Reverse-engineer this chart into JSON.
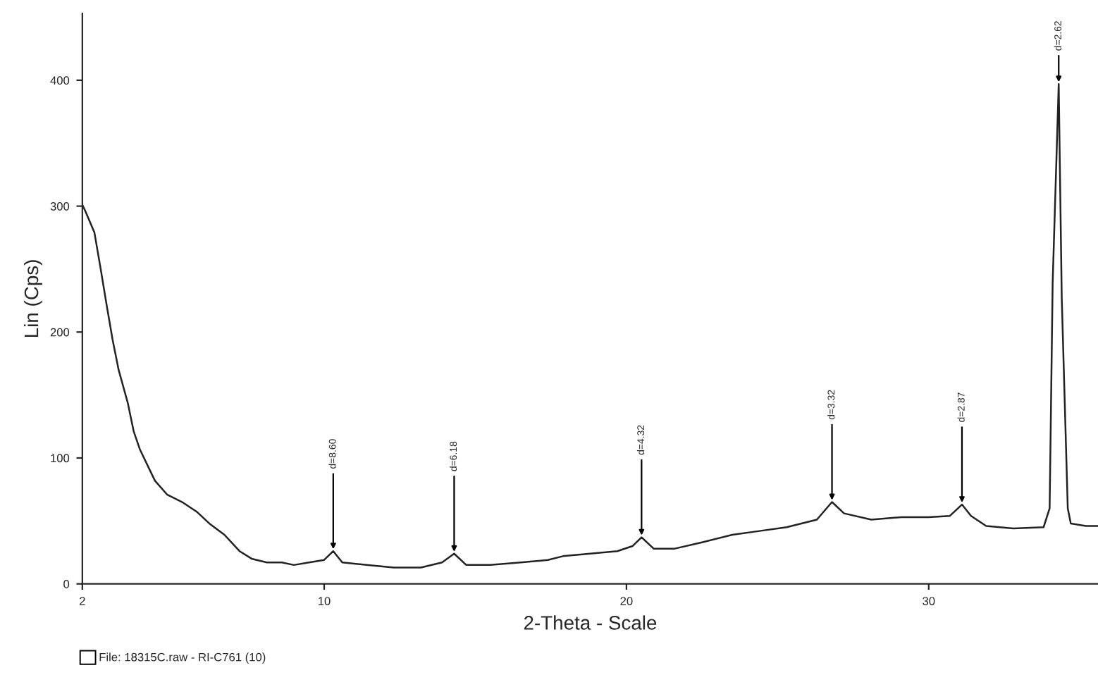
{
  "chart_data": {
    "type": "line",
    "xlabel": "2-Theta - Scale",
    "ylabel": "Lin (Cps)",
    "x": [
      2.0,
      2.1,
      2.4,
      2.6,
      2.8,
      3.0,
      3.2,
      3.5,
      3.7,
      3.9,
      4.4,
      4.8,
      5.3,
      5.8,
      6.2,
      6.7,
      7.2,
      7.6,
      8.1,
      8.6,
      9.0,
      9.5,
      10.0,
      10.3,
      10.6,
      11.4,
      12.3,
      13.2,
      13.9,
      14.3,
      14.7,
      15.5,
      16.5,
      17.4,
      17.9,
      18.8,
      19.7,
      20.2,
      20.5,
      20.9,
      21.6,
      22.5,
      23.5,
      24.4,
      25.3,
      26.3,
      26.8,
      27.2,
      28.1,
      29.1,
      30.0,
      30.7,
      31.1,
      31.4,
      31.9,
      32.8,
      33.8,
      34.0,
      34.1,
      34.3,
      34.4,
      34.6,
      34.7,
      35.2,
      35.6
    ],
    "series": [
      {
        "color": "#222222",
        "values": [
          301,
          296,
          279,
          251,
          222,
          194,
          170,
          144,
          121,
          107,
          82,
          71,
          65,
          57,
          48,
          39,
          26,
          20,
          17,
          17,
          15,
          17,
          19,
          26,
          17,
          15,
          13,
          13,
          17,
          24,
          15,
          15,
          17,
          19,
          22,
          24,
          26,
          30,
          37,
          28,
          28,
          33,
          39,
          42,
          45,
          51,
          65,
          56,
          51,
          53,
          53,
          54,
          63,
          54,
          46,
          44,
          45,
          60,
          239,
          397,
          228,
          60,
          48,
          46,
          46
        ]
      }
    ],
    "xlim": [
      2,
      35.6
    ],
    "ylim": [
      0,
      453
    ],
    "xticks": [
      2,
      10,
      20,
      30
    ],
    "yticks": [
      0,
      100,
      200,
      300,
      400
    ],
    "grid": false,
    "legend": false,
    "marker": "none",
    "line_style": "solid",
    "annotations": [
      {
        "text": "d=8.60",
        "x": 10.3,
        "y": 26
      },
      {
        "text": "d=6.18",
        "x": 14.3,
        "y": 24
      },
      {
        "text": "d=4.32",
        "x": 20.5,
        "y": 37
      },
      {
        "text": "d=3.32",
        "x": 26.8,
        "y": 65
      },
      {
        "text": "d=2.87",
        "x": 31.1,
        "y": 63
      },
      {
        "text": "d=2.62",
        "x": 34.3,
        "y": 397
      },
      "File: 18315C.raw - RI-C761 (10)"
    ]
  }
}
